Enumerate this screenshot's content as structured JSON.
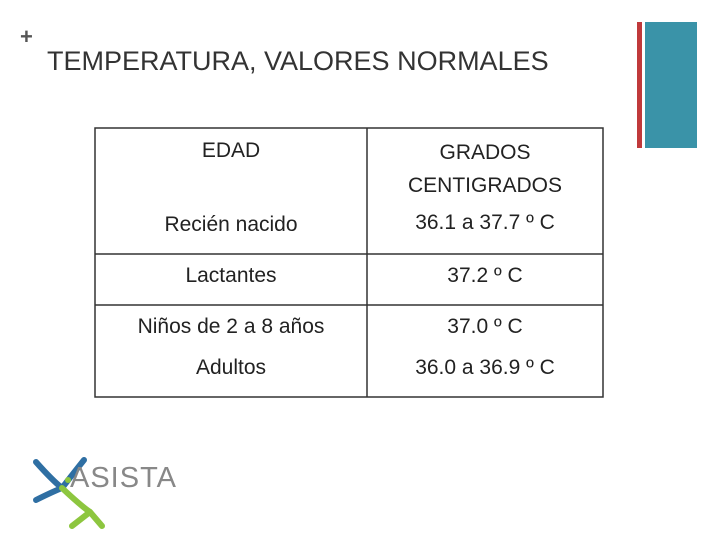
{
  "header": {
    "mark": "+",
    "title": "TEMPERATURA, VALORES NORMALES"
  },
  "table": {
    "columns": [
      "EDAD",
      "GRADOS CENTIGRADOS"
    ],
    "rows": [
      [
        "Recién nacido",
        "36.1 a 37.7 º C"
      ],
      [
        "Lactantes",
        "37.2 º C"
      ],
      [
        "Niños de 2 a 8 años",
        "37.0 º C"
      ],
      [
        "Adultos",
        "36.0 a 36.9 º C"
      ]
    ]
  },
  "logo": {
    "text": "ASISTA"
  }
}
